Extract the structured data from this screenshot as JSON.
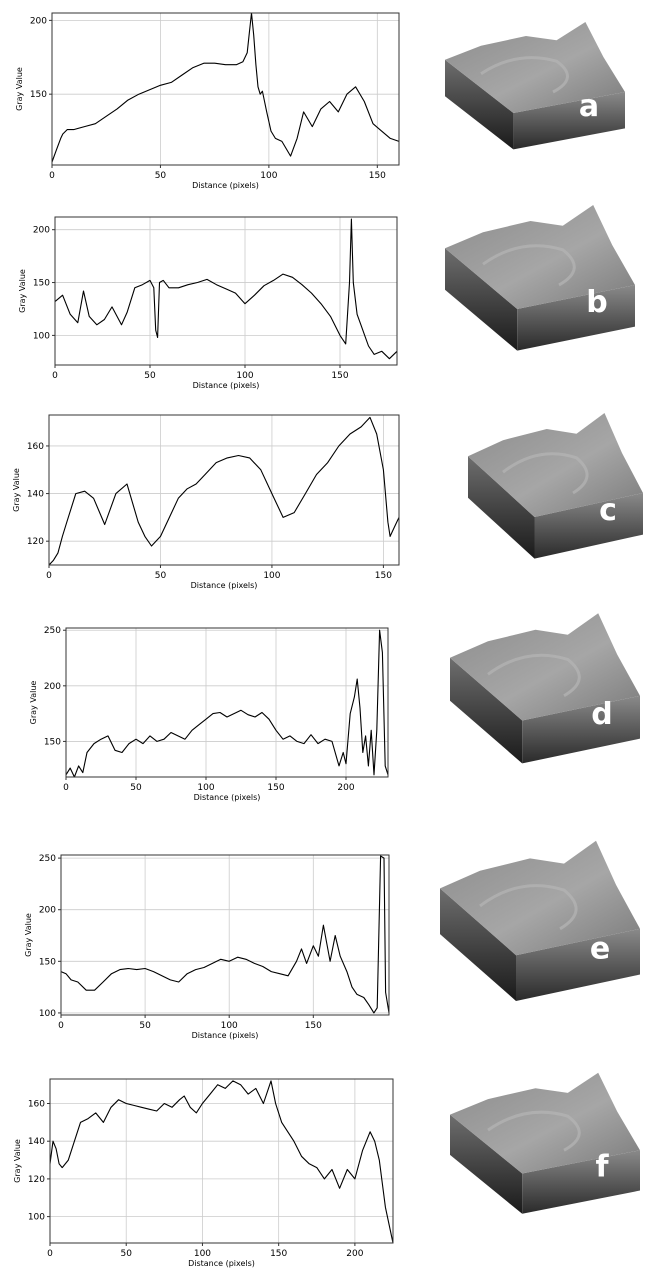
{
  "chart_data": [
    {
      "type": "line",
      "panel_letter": "a",
      "xlabel": "Distance (pixels)",
      "ylabel": "Gray Value",
      "xlim": [
        0,
        160
      ],
      "ylim": [
        102,
        205
      ],
      "xticks": [
        0,
        50,
        100,
        150
      ],
      "yticks": [
        150,
        200
      ],
      "grid": true,
      "x": [
        0,
        2,
        4,
        5,
        7,
        10,
        15,
        20,
        25,
        30,
        35,
        40,
        45,
        50,
        55,
        60,
        65,
        70,
        75,
        80,
        85,
        88,
        90,
        91,
        92,
        93,
        94,
        95,
        96,
        97,
        99,
        101,
        103,
        106,
        110,
        113,
        116,
        120,
        124,
        128,
        132,
        136,
        140,
        144,
        148,
        152,
        156,
        160
      ],
      "y": [
        104,
        112,
        120,
        123,
        126,
        126,
        128,
        130,
        135,
        140,
        146,
        150,
        153,
        156,
        158,
        163,
        168,
        171,
        171,
        170,
        170,
        172,
        178,
        192,
        205,
        190,
        170,
        155,
        150,
        152,
        138,
        125,
        120,
        118,
        108,
        120,
        138,
        128,
        140,
        145,
        138,
        150,
        155,
        145,
        130,
        125,
        120,
        118
      ]
    },
    {
      "type": "line",
      "panel_letter": "b",
      "xlabel": "Distance (pixels)",
      "ylabel": "Gray Value",
      "xlim": [
        0,
        180
      ],
      "ylim": [
        72,
        212
      ],
      "xticks": [
        0,
        50,
        100,
        150
      ],
      "yticks": [
        100,
        150,
        200
      ],
      "grid": true,
      "x": [
        0,
        4,
        8,
        12,
        15,
        18,
        22,
        26,
        30,
        35,
        38,
        42,
        46,
        50,
        52,
        53,
        54,
        55,
        57,
        60,
        65,
        70,
        75,
        80,
        85,
        90,
        95,
        100,
        105,
        110,
        115,
        120,
        125,
        130,
        135,
        140,
        145,
        150,
        153,
        155,
        156,
        157,
        159,
        161,
        163,
        165,
        168,
        172,
        176,
        180
      ],
      "y": [
        132,
        138,
        120,
        112,
        142,
        118,
        110,
        115,
        127,
        110,
        122,
        145,
        148,
        152,
        145,
        105,
        98,
        150,
        152,
        145,
        145,
        148,
        150,
        153,
        148,
        144,
        140,
        130,
        138,
        147,
        152,
        158,
        155,
        148,
        140,
        130,
        118,
        100,
        92,
        150,
        210,
        150,
        120,
        110,
        100,
        90,
        82,
        85,
        78,
        85
      ]
    },
    {
      "type": "line",
      "panel_letter": "c",
      "xlabel": "Distance (pixels)",
      "ylabel": "Gray Value",
      "xlim": [
        0,
        157
      ],
      "ylim": [
        110,
        173
      ],
      "xticks": [
        0,
        50,
        100,
        150
      ],
      "yticks": [
        120,
        140,
        160
      ],
      "grid": true,
      "x": [
        0,
        2,
        4,
        6,
        8,
        12,
        16,
        20,
        25,
        30,
        35,
        40,
        43,
        46,
        50,
        54,
        58,
        62,
        66,
        70,
        75,
        80,
        85,
        90,
        95,
        100,
        105,
        110,
        115,
        120,
        125,
        130,
        135,
        140,
        144,
        147,
        150,
        152,
        153,
        155,
        157
      ],
      "y": [
        110,
        112,
        115,
        122,
        128,
        140,
        141,
        138,
        127,
        140,
        144,
        128,
        122,
        118,
        122,
        130,
        138,
        142,
        144,
        148,
        153,
        155,
        156,
        155,
        150,
        140,
        130,
        132,
        140,
        148,
        153,
        160,
        165,
        168,
        172,
        165,
        150,
        128,
        122,
        126,
        130
      ]
    },
    {
      "type": "line",
      "panel_letter": "d",
      "xlabel": "Distance (pixels)",
      "ylabel": "Gray Value",
      "xlim": [
        0,
        230
      ],
      "ylim": [
        118,
        252
      ],
      "xticks": [
        0,
        50,
        100,
        150,
        200
      ],
      "yticks": [
        150,
        200,
        250
      ],
      "grid": true,
      "x": [
        0,
        3,
        6,
        9,
        12,
        15,
        20,
        25,
        30,
        35,
        40,
        45,
        50,
        55,
        60,
        65,
        70,
        75,
        80,
        85,
        90,
        95,
        100,
        105,
        110,
        115,
        120,
        125,
        130,
        135,
        140,
        145,
        150,
        155,
        160,
        165,
        170,
        175,
        180,
        185,
        190,
        195,
        198,
        200,
        203,
        206,
        208,
        210,
        212,
        214,
        216,
        218,
        220,
        222,
        224,
        226,
        228,
        230
      ],
      "y": [
        120,
        126,
        118,
        128,
        122,
        140,
        148,
        152,
        155,
        142,
        140,
        148,
        152,
        148,
        155,
        150,
        152,
        158,
        155,
        152,
        160,
        165,
        170,
        175,
        176,
        172,
        175,
        178,
        174,
        172,
        176,
        170,
        160,
        152,
        155,
        150,
        148,
        156,
        148,
        152,
        150,
        128,
        140,
        130,
        175,
        190,
        206,
        180,
        140,
        155,
        128,
        160,
        120,
        160,
        250,
        230,
        128,
        120
      ]
    },
    {
      "type": "line",
      "panel_letter": "e",
      "xlabel": "Distance (pixels)",
      "ylabel": "Gray Value",
      "xlim": [
        0,
        195
      ],
      "ylim": [
        98,
        253
      ],
      "xticks": [
        0,
        50,
        100,
        150
      ],
      "yticks": [
        100,
        150,
        200,
        250
      ],
      "grid": true,
      "x": [
        0,
        3,
        6,
        10,
        15,
        20,
        25,
        30,
        35,
        40,
        45,
        50,
        55,
        60,
        65,
        70,
        75,
        80,
        85,
        90,
        95,
        100,
        105,
        110,
        115,
        120,
        125,
        130,
        135,
        140,
        143,
        146,
        150,
        153,
        156,
        160,
        163,
        166,
        170,
        173,
        176,
        180,
        183,
        186,
        188,
        190,
        192,
        193,
        195
      ],
      "y": [
        140,
        138,
        132,
        130,
        122,
        122,
        130,
        138,
        142,
        143,
        142,
        143,
        140,
        136,
        132,
        130,
        138,
        142,
        144,
        148,
        152,
        150,
        154,
        152,
        148,
        145,
        140,
        138,
        136,
        150,
        162,
        148,
        165,
        155,
        185,
        150,
        175,
        155,
        140,
        125,
        118,
        115,
        108,
        100,
        105,
        252,
        250,
        120,
        100
      ]
    },
    {
      "type": "line",
      "panel_letter": "f",
      "xlabel": "Distance (pixels)",
      "ylabel": "Gray Value",
      "xlim": [
        0,
        225
      ],
      "ylim": [
        86,
        173
      ],
      "xticks": [
        0,
        50,
        100,
        150,
        200
      ],
      "yticks": [
        100,
        120,
        140,
        160
      ],
      "grid": true,
      "x": [
        0,
        2,
        4,
        6,
        8,
        12,
        16,
        20,
        25,
        30,
        35,
        40,
        45,
        50,
        55,
        60,
        65,
        70,
        75,
        80,
        85,
        88,
        92,
        96,
        100,
        105,
        110,
        115,
        120,
        125,
        130,
        135,
        140,
        145,
        148,
        152,
        156,
        160,
        165,
        170,
        175,
        180,
        185,
        190,
        195,
        200,
        205,
        210,
        213,
        216,
        220,
        225
      ],
      "y": [
        128,
        140,
        136,
        128,
        126,
        130,
        140,
        150,
        152,
        155,
        150,
        158,
        162,
        160,
        159,
        158,
        157,
        156,
        160,
        158,
        162,
        164,
        158,
        155,
        160,
        165,
        170,
        168,
        172,
        170,
        165,
        168,
        160,
        172,
        160,
        150,
        145,
        140,
        132,
        128,
        126,
        120,
        125,
        115,
        125,
        120,
        135,
        145,
        140,
        130,
        105,
        86
      ]
    }
  ]
}
